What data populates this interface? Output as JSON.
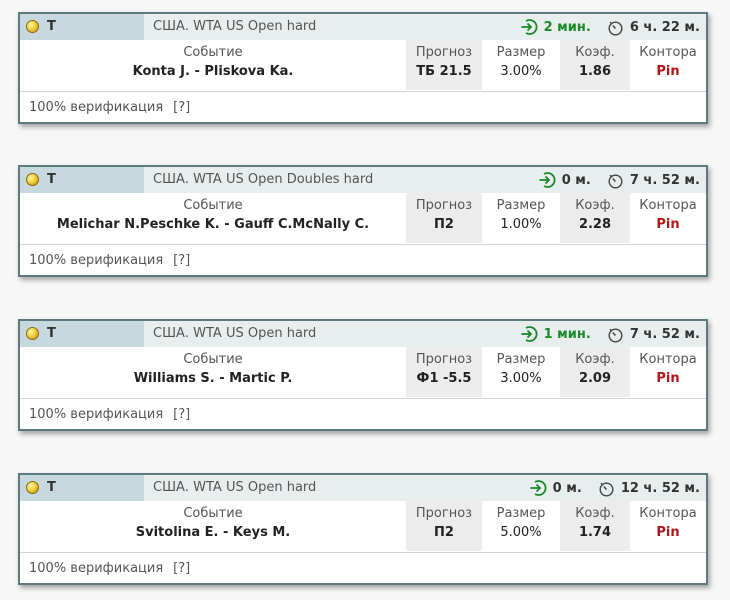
{
  "labels": {
    "event": "Событие",
    "forecast": "Прогноз",
    "size": "Размер",
    "coef": "Коэф.",
    "bookmaker": "Контора",
    "verification": "100% верификация",
    "help": "[?]"
  },
  "colors": {
    "green": "#1c8a2a",
    "pin_red": "#b31417",
    "border": "#5d7a7f"
  },
  "tips": [
    {
      "sport": "Т",
      "league": "США. WTA US Open hard",
      "ago": "2 мин.",
      "ago_green": true,
      "start_in": "6 ч. 22 м.",
      "event": "Konta J. - Pliskova Ka.",
      "forecast": "ТБ 21.5",
      "size": "3.00%",
      "coef": "1.86",
      "bookmaker": "Pin"
    },
    {
      "sport": "Т",
      "league": "США. WTA US Open Doubles hard",
      "ago": "0 м.",
      "ago_green": false,
      "start_in": "7 ч. 52 м.",
      "event": "Melichar N.Peschke K. - Gauff C.McNally C.",
      "forecast": "П2",
      "size": "1.00%",
      "coef": "2.28",
      "bookmaker": "Pin"
    },
    {
      "sport": "Т",
      "league": "США. WTA US Open hard",
      "ago": "1 мин.",
      "ago_green": true,
      "start_in": "7 ч. 52 м.",
      "event": "Williams S. - Martic P.",
      "forecast": "Ф1 -5.5",
      "size": "3.00%",
      "coef": "2.09",
      "bookmaker": "Pin"
    },
    {
      "sport": "Т",
      "league": "США. WTA US Open hard",
      "ago": "0 м.",
      "ago_green": false,
      "start_in": "12 ч. 52 м.",
      "event": "Svitolina E. - Keys M.",
      "forecast": "П2",
      "size": "5.00%",
      "coef": "1.74",
      "bookmaker": "Pin"
    }
  ]
}
